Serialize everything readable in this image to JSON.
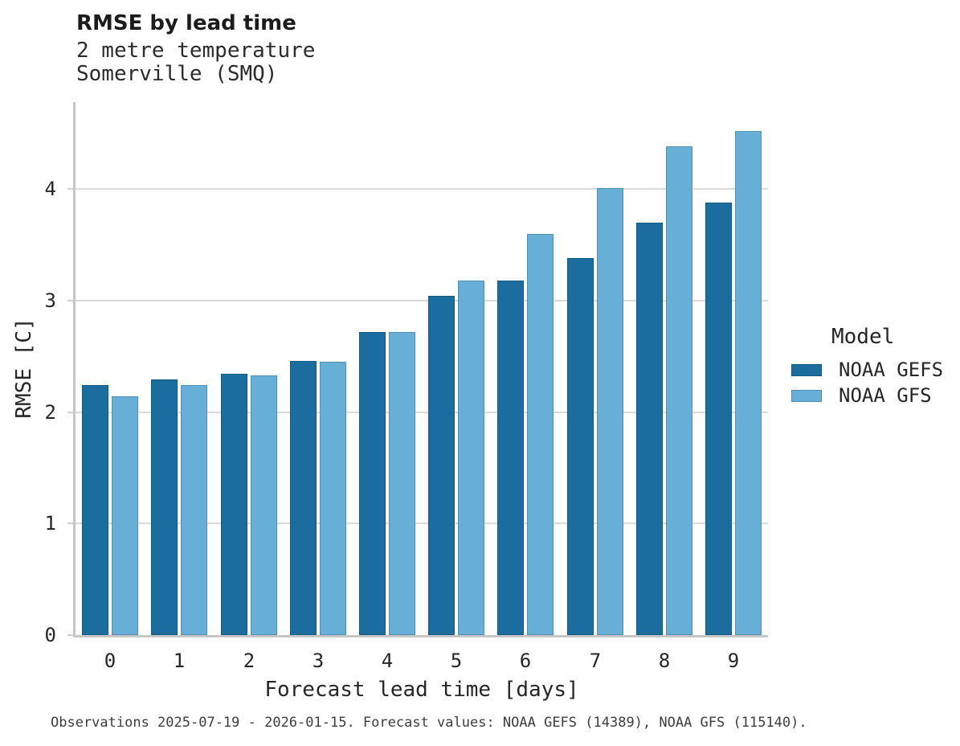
{
  "header": {
    "title": "RMSE by lead time",
    "subtitle_line1": "2 metre temperature",
    "subtitle_line2": "Somerville (SMQ)"
  },
  "chart_data": {
    "type": "bar",
    "title": "RMSE by lead time",
    "subtitle": [
      "2 metre temperature",
      "Somerville (SMQ)"
    ],
    "categories": [
      "0",
      "1",
      "2",
      "3",
      "4",
      "5",
      "6",
      "7",
      "8",
      "9"
    ],
    "series": [
      {
        "name": "NOAA GEFS",
        "color": "#1a6d9e",
        "values": [
          2.24,
          2.29,
          2.34,
          2.46,
          2.72,
          3.04,
          3.18,
          3.38,
          3.7,
          3.88
        ]
      },
      {
        "name": "NOAA GFS",
        "color": "#68afd7",
        "values": [
          2.14,
          2.24,
          2.33,
          2.45,
          2.72,
          3.18,
          3.6,
          4.01,
          4.38,
          4.52
        ]
      }
    ],
    "xlabel": "Forecast lead time [days]",
    "ylabel": "RMSE [C]",
    "ylim": [
      0,
      4.78
    ],
    "yticks": [
      0,
      1,
      2,
      3,
      4
    ],
    "grid": true,
    "legend_position": "right"
  },
  "legend": {
    "title": "Model",
    "items": [
      {
        "label": "NOAA GEFS",
        "color": "#1a6d9e"
      },
      {
        "label": "NOAA GFS",
        "color": "#68afd7"
      }
    ]
  },
  "caption": "Observations 2025-07-19 - 2026-01-15. Forecast values: NOAA GEFS (14389), NOAA GFS (115140)."
}
